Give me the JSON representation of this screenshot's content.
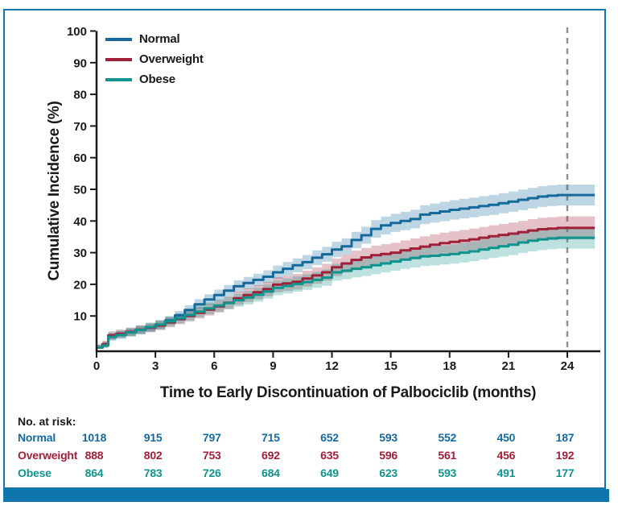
{
  "figure": {
    "frame_color": "#1277ad",
    "bottom_bar_color": "#0f76ad",
    "axis_color": "#1a1a1a",
    "reference_line_color": "#8f8f8f"
  },
  "chart_data": {
    "type": "line",
    "subtype": "cumulative-incidence-step-curves-with-confidence-bands",
    "title": "",
    "xlabel": "Time to Early Discontinuation of Palbociclib (months)",
    "ylabel": "Cumulative Incidence (%)",
    "xlim": [
      0,
      25.4
    ],
    "ylim": [
      0,
      100
    ],
    "xticks": [
      0,
      3,
      6,
      9,
      12,
      15,
      18,
      21,
      24
    ],
    "yticks": [
      10,
      20,
      30,
      40,
      50,
      60,
      70,
      80,
      90,
      100
    ],
    "grid": false,
    "legend_position": "top-left",
    "reference_line_x": 24,
    "series": [
      {
        "name": "Normal",
        "color": "#166a9b",
        "ci_base": 0.9,
        "ci_slope": 0.05,
        "points": [
          [
            0,
            0
          ],
          [
            0.3,
            0.9
          ],
          [
            0.6,
            3.6
          ],
          [
            1,
            4.2
          ],
          [
            1.5,
            4.9
          ],
          [
            2,
            5.6
          ],
          [
            2.5,
            6.3
          ],
          [
            3,
            7.2
          ],
          [
            3.5,
            8.6
          ],
          [
            4,
            10.2
          ],
          [
            4.5,
            11.9
          ],
          [
            5,
            13.7
          ],
          [
            5.5,
            15.2
          ],
          [
            6,
            16.6
          ],
          [
            6.5,
            18
          ],
          [
            7,
            19.4
          ],
          [
            7.5,
            20.4
          ],
          [
            8,
            21.4
          ],
          [
            8.5,
            22.4
          ],
          [
            9,
            23.8
          ],
          [
            9.5,
            24.9
          ],
          [
            10,
            26
          ],
          [
            10.5,
            27
          ],
          [
            11,
            28.4
          ],
          [
            11.5,
            29.5
          ],
          [
            12,
            31
          ],
          [
            12.5,
            32
          ],
          [
            13,
            34
          ],
          [
            13.5,
            35.5
          ],
          [
            14,
            37.5
          ],
          [
            14.5,
            38.6
          ],
          [
            15,
            39.4
          ],
          [
            15.5,
            40
          ],
          [
            16,
            40.6
          ],
          [
            16.5,
            42
          ],
          [
            17,
            42.5
          ],
          [
            17.5,
            43
          ],
          [
            18,
            43.5
          ],
          [
            18.5,
            43.9
          ],
          [
            19,
            44.3
          ],
          [
            19.5,
            44.7
          ],
          [
            20,
            45.1
          ],
          [
            20.5,
            45.6
          ],
          [
            21,
            46.1
          ],
          [
            21.5,
            46.7
          ],
          [
            22,
            47.2
          ],
          [
            22.5,
            47.7
          ],
          [
            23,
            48
          ],
          [
            23.5,
            48.2
          ],
          [
            24,
            48.2
          ],
          [
            25.4,
            48.2
          ]
        ]
      },
      {
        "name": "Overweight",
        "color": "#a02039",
        "ci_base": 1.0,
        "ci_slope": 0.07,
        "points": [
          [
            0,
            0
          ],
          [
            0.3,
            1.1
          ],
          [
            0.6,
            3.9
          ],
          [
            1,
            4.4
          ],
          [
            1.5,
            5
          ],
          [
            2,
            5.7
          ],
          [
            2.5,
            6.3
          ],
          [
            3,
            7
          ],
          [
            3.5,
            8
          ],
          [
            4,
            9
          ],
          [
            4.5,
            10
          ],
          [
            5,
            11
          ],
          [
            5.5,
            12
          ],
          [
            6,
            13
          ],
          [
            6.5,
            14.2
          ],
          [
            7,
            15.6
          ],
          [
            7.5,
            16.6
          ],
          [
            8,
            17.5
          ],
          [
            8.5,
            18.5
          ],
          [
            9,
            19.9
          ],
          [
            9.5,
            20.3
          ],
          [
            10,
            20.8
          ],
          [
            10.5,
            21.8
          ],
          [
            11,
            22.8
          ],
          [
            11.5,
            23.8
          ],
          [
            12,
            25.4
          ],
          [
            12.5,
            26.6
          ],
          [
            13,
            27.7
          ],
          [
            13.5,
            28.5
          ],
          [
            14,
            29.2
          ],
          [
            14.5,
            29.6
          ],
          [
            15,
            30
          ],
          [
            15.5,
            30.7
          ],
          [
            16,
            31.3
          ],
          [
            16.5,
            31.9
          ],
          [
            17,
            32.5
          ],
          [
            17.5,
            33
          ],
          [
            18,
            33.4
          ],
          [
            18.5,
            33.8
          ],
          [
            19,
            34.2
          ],
          [
            19.5,
            34.7
          ],
          [
            20,
            35.2
          ],
          [
            20.5,
            35.6
          ],
          [
            21,
            36
          ],
          [
            21.5,
            36.5
          ],
          [
            22,
            37
          ],
          [
            22.5,
            37.4
          ],
          [
            23,
            37.6
          ],
          [
            23.5,
            37.8
          ],
          [
            24,
            37.8
          ],
          [
            25.4,
            37.8
          ]
        ]
      },
      {
        "name": "Obese",
        "color": "#0e948c",
        "ci_base": 1.0,
        "ci_slope": 0.07,
        "points": [
          [
            0,
            0
          ],
          [
            0.3,
            0.7
          ],
          [
            0.6,
            3.4
          ],
          [
            1,
            4
          ],
          [
            1.5,
            4.8
          ],
          [
            2,
            5.6
          ],
          [
            2.5,
            6.5
          ],
          [
            3,
            7.3
          ],
          [
            3.5,
            8.3
          ],
          [
            4,
            9.3
          ],
          [
            4.5,
            10.3
          ],
          [
            5,
            11.4
          ],
          [
            5.5,
            12.4
          ],
          [
            6,
            13.3
          ],
          [
            6.5,
            14.1
          ],
          [
            7,
            15
          ],
          [
            7.5,
            15.8
          ],
          [
            8,
            16.7
          ],
          [
            8.5,
            17.7
          ],
          [
            9,
            18.9
          ],
          [
            9.5,
            19.5
          ],
          [
            10,
            20.1
          ],
          [
            10.5,
            20.7
          ],
          [
            11,
            21.4
          ],
          [
            11.5,
            22.1
          ],
          [
            12,
            23.8
          ],
          [
            12.5,
            24.3
          ],
          [
            13,
            24.9
          ],
          [
            13.5,
            25.4
          ],
          [
            14,
            26
          ],
          [
            14.5,
            26.6
          ],
          [
            15,
            27.2
          ],
          [
            15.5,
            27.8
          ],
          [
            16,
            28.3
          ],
          [
            16.5,
            28.8
          ],
          [
            17,
            29
          ],
          [
            17.5,
            29.3
          ],
          [
            18,
            29.6
          ],
          [
            18.5,
            30
          ],
          [
            19,
            30.4
          ],
          [
            19.5,
            31
          ],
          [
            20,
            31.5
          ],
          [
            20.5,
            32
          ],
          [
            21,
            32.5
          ],
          [
            21.5,
            33.2
          ],
          [
            22,
            33.8
          ],
          [
            22.5,
            34.2
          ],
          [
            23,
            34.5
          ],
          [
            23.5,
            34.7
          ],
          [
            24,
            34.7
          ],
          [
            25.4,
            34.7
          ]
        ]
      }
    ],
    "risk_table": {
      "title": "No. at risk:",
      "time_points": [
        0,
        3,
        6,
        9,
        12,
        15,
        18,
        21,
        24
      ],
      "rows": [
        {
          "name": "Normal",
          "color": "#166a9b",
          "counts": [
            1018,
            915,
            797,
            715,
            652,
            593,
            552,
            450,
            187
          ]
        },
        {
          "name": "Overweight",
          "color": "#a02039",
          "counts": [
            888,
            802,
            753,
            692,
            635,
            596,
            561,
            456,
            192
          ]
        },
        {
          "name": "Obese",
          "color": "#0e948c",
          "counts": [
            864,
            783,
            726,
            684,
            649,
            623,
            593,
            491,
            177
          ]
        }
      ]
    }
  }
}
